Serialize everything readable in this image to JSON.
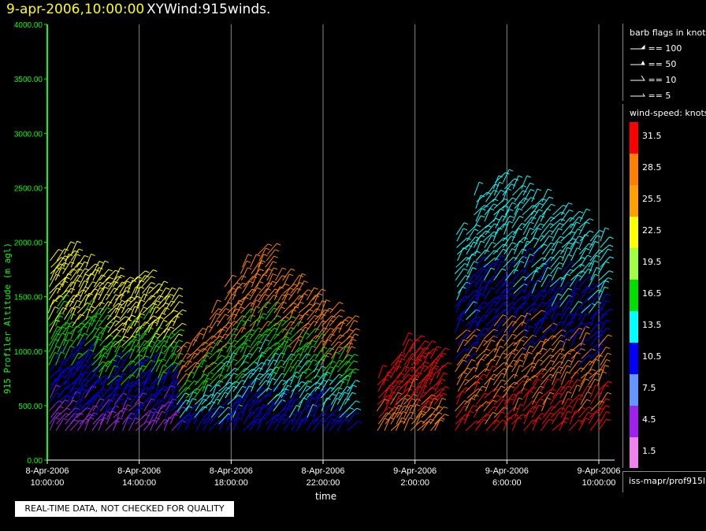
{
  "header": {
    "date": "9-apr-2006,10:00:00",
    "name": "XYWind:915winds."
  },
  "colors": {
    "title_date": "#ffff00",
    "axis": "#00ff00",
    "grid": "#888888"
  },
  "chart_data": {
    "type": "scatter",
    "ylabel": "915 Profiler Altitude (m agl)",
    "xlabel": "time",
    "ylim": [
      0,
      4000
    ],
    "yticks": [
      "0.00",
      "500.00",
      "1000.00",
      "1500.00",
      "2000.00",
      "2500.00",
      "3000.00",
      "3500.00",
      "4000.00"
    ],
    "xticks": [
      {
        "date": "8-Apr-2006",
        "time": "10:00:00"
      },
      {
        "date": "8-Apr-2006",
        "time": "14:00:00"
      },
      {
        "date": "8-Apr-2006",
        "time": "18:00:00"
      },
      {
        "date": "8-Apr-2006",
        "time": "22:00:00"
      },
      {
        "date": "9-Apr-2006",
        "time": "2:00:00"
      },
      {
        "date": "9-Apr-2006",
        "time": "6:00:00"
      },
      {
        "date": "9-Apr-2006",
        "time": "10:00:00"
      }
    ],
    "xlim_hours": [
      0,
      24.0
    ],
    "vertical_grid": true,
    "segments": [
      {
        "t_start": 0.1,
        "t_end": 5.4,
        "top_alt": [
          1850,
          1900,
          1800,
          1750,
          1650,
          1600,
          1700,
          1550,
          1500
        ],
        "dominant": "purple-blue-green-yellow"
      },
      {
        "t_start": 5.7,
        "t_end": 13.0,
        "top_alt": [
          1000,
          1150,
          1400,
          1600,
          1800,
          1900,
          1700,
          1600,
          1500,
          1350,
          1250
        ],
        "dominant": "blue-cyan-green-orange"
      },
      {
        "t_start": 14.4,
        "t_end": 16.9,
        "top_alt": [
          800,
          900,
          1100,
          1000,
          950
        ],
        "dominant": "orange-red"
      },
      {
        "t_start": 17.8,
        "t_end": 24.0,
        "top_alt": [
          2100,
          2450,
          2550,
          2500,
          2400,
          2300,
          2200,
          2050
        ],
        "dominant": "red-orange-blue-cyan"
      }
    ],
    "barb_legend": {
      "title": "barb flags in knots",
      "entries": [
        "== 100",
        "== 50",
        "== 10",
        "== 5"
      ]
    },
    "color_scale": {
      "title": "wind-speed: knots",
      "levels": [
        {
          "label": "31.5",
          "color": "#ff0000"
        },
        {
          "label": "28.5",
          "color": "#ff8000"
        },
        {
          "label": "25.5",
          "color": "#ffa000"
        },
        {
          "label": "22.5",
          "color": "#ffff00"
        },
        {
          "label": "19.5",
          "color": "#a0ff40"
        },
        {
          "label": "16.5",
          "color": "#00e000"
        },
        {
          "label": "13.5",
          "color": "#00ffff"
        },
        {
          "label": "10.5",
          "color": "#0000ff"
        },
        {
          "label": "7.5",
          "color": "#6496ff"
        },
        {
          "label": "4.5",
          "color": "#a020f0"
        },
        {
          "label": "1.5",
          "color": "#ee82ee"
        }
      ]
    }
  },
  "source_label": "iss-mapr/prof915l",
  "quality_note": "REAL-TIME DATA, NOT CHECKED FOR QUALITY"
}
